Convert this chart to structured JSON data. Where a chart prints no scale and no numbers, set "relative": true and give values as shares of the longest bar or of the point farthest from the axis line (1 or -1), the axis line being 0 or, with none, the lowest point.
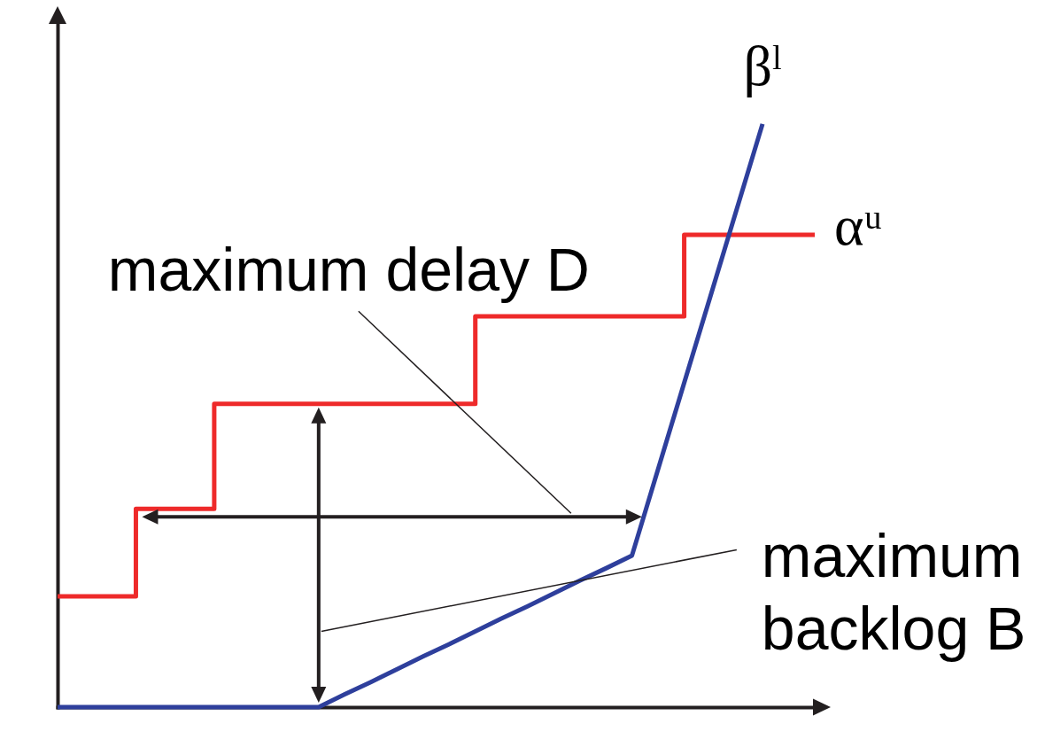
{
  "chart_data": {
    "type": "line",
    "relative": true,
    "categories": [
      null,
      null,
      null,
      null,
      null,
      null,
      null,
      null,
      null,
      null,
      null,
      null,
      null,
      null,
      null,
      null,
      null,
      null,
      null,
      null,
      null,
      null,
      null,
      null,
      null,
      null,
      null,
      null,
      null,
      null
    ],
    "series": [
      {
        "name": "αᵘ",
        "type": "step",
        "color": "#ee2a2a",
        "values": [
          0.19,
          0.19,
          0.19,
          0.34,
          0.34,
          0.34,
          0.52,
          0.52,
          0.52,
          0.52,
          0.52,
          0.52,
          0.52,
          0.52,
          0.52,
          0.52,
          0.67,
          0.67,
          0.67,
          0.67,
          0.67,
          0.67,
          0.67,
          0.67,
          0.81,
          0.81,
          0.81,
          0.81,
          0.81,
          0.81
        ]
      },
      {
        "name": "βˡ",
        "type": "line",
        "color": "#2e3f9c",
        "values": [
          0,
          0,
          0,
          0,
          0,
          0,
          0,
          0,
          0,
          0,
          0,
          0.022,
          0.043,
          0.065,
          0.087,
          0.108,
          0.13,
          0.152,
          0.173,
          0.195,
          0.217,
          0.238,
          0.26,
          0.408,
          0.556,
          0.704,
          0.852,
          1,
          null,
          null
        ]
      }
    ],
    "annotations": [
      "maximum delay D",
      "maximum backlog B"
    ]
  }
}
